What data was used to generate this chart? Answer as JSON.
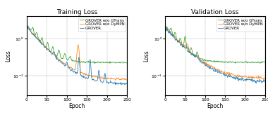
{
  "title_train": "Training Loss",
  "title_val": "Validation Loss",
  "xlabel": "Epoch",
  "ylabel": "Loss",
  "legend_labels": [
    "GROVER",
    "GROVER w/o DyMPN",
    "GROVER w/o GTrans"
  ],
  "colors": [
    "#1f77b4",
    "#ff7f0e",
    "#2ca02c"
  ],
  "xlim": [
    0,
    250
  ],
  "ylim": [
    0.03,
    4.0
  ],
  "xticks": [
    0,
    50,
    100,
    150,
    200,
    250
  ],
  "figwidth": 3.8,
  "figheight": 1.77,
  "dpi": 100,
  "seed": 42
}
